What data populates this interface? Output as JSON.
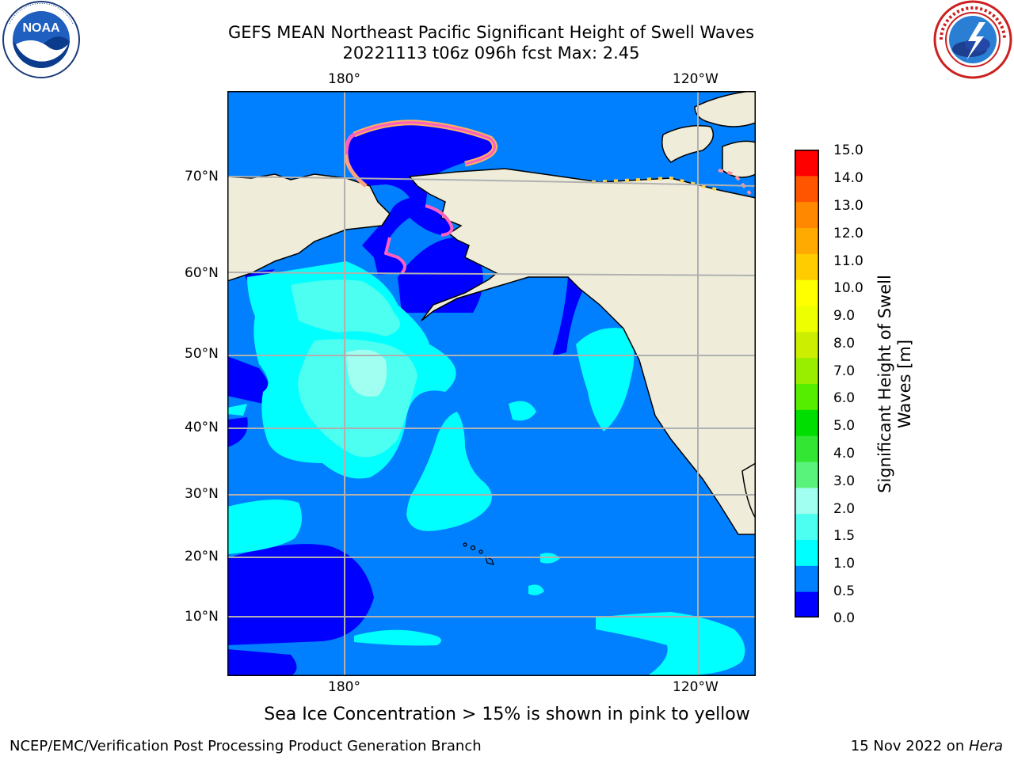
{
  "title": {
    "line1": "GEFS MEAN Northeast Pacific Significant Height of Swell Waves",
    "line2": "20221113 t06z 096h fcst   Max: 2.45"
  },
  "map": {
    "lon_labels_top": [
      "180°",
      "120°W"
    ],
    "lon_labels_bottom": [
      "180°",
      "120°W"
    ],
    "lat_labels": [
      "70°N",
      "60°N",
      "50°N",
      "40°N",
      "30°N",
      "20°N",
      "10°N"
    ],
    "land_color": "#efedd9",
    "grid_color": "#b0b0b0"
  },
  "colorbar": {
    "label": "Significant Height of Swell Waves [m]",
    "ticks": [
      "15.0",
      "14.0",
      "13.0",
      "12.0",
      "11.0",
      "10.0",
      "9.0",
      "8.0",
      "7.0",
      "6.0",
      "5.0",
      "4.0",
      "3.0",
      "2.0",
      "1.5",
      "1.0",
      "0.5",
      "0.0"
    ],
    "colors_bottom_to_top": [
      "#0000ff",
      "#0080ff",
      "#00ffff",
      "#4cfff0",
      "#a0fff0",
      "#59f27b",
      "#33e633",
      "#00dd00",
      "#55ee00",
      "#99ee00",
      "#ccee00",
      "#eeff00",
      "#ffff00",
      "#ffcc00",
      "#ffaa00",
      "#ff8800",
      "#ff5500",
      "#ff2200",
      "#ff0000"
    ]
  },
  "logos": {
    "noaa_text": "NOAA",
    "noaa_ring": "NATIONAL OCEANIC AND ATMOSPHERIC ADMINISTRATION · U.S. DEPARTMENT OF COMMERCE",
    "nws_ring": "NATIONAL WEATHER SERVICE"
  },
  "annotations": {
    "ice_note": "Sea Ice Concentration > 15% is shown in pink to yellow"
  },
  "footer": {
    "left": "NCEP/EMC/Verification Post Processing Product Generation Branch",
    "right_date": "15 Nov 2022 on ",
    "right_host": "Hera"
  }
}
